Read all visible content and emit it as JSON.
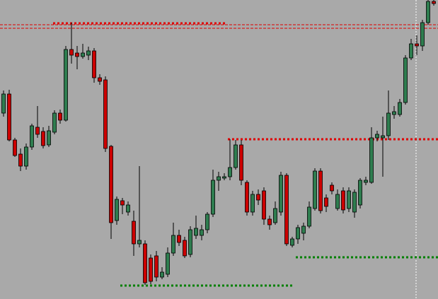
{
  "chart_data": {
    "type": "candlestick",
    "ylim": [
      0,
      423
    ],
    "up_color": "#2e7d4f",
    "down_color": "#cc0000",
    "open": [
      263,
      290,
      225,
      205,
      188,
      215,
      243,
      237,
      218,
      236,
      263,
      253,
      353,
      348,
      343,
      345,
      351,
      313,
      310,
      216,
      111,
      139,
      123,
      110,
      78,
      78,
      58,
      61,
      31,
      35,
      65,
      90,
      83,
      63,
      90,
      90,
      98,
      120,
      168,
      171,
      173,
      186,
      218,
      165,
      123,
      148,
      153,
      113,
      108,
      123,
      175,
      76,
      85,
      93,
      103,
      128,
      181,
      143,
      161,
      128,
      153,
      128,
      123,
      133,
      165,
      165,
      228,
      228,
      231,
      261,
      261,
      278,
      341,
      361,
      358,
      391,
      421
    ],
    "high": [
      295,
      296,
      228,
      213,
      220,
      248,
      273,
      243,
      245,
      267,
      268,
      358,
      391,
      358,
      361,
      357,
      355,
      318,
      315,
      218,
      145,
      143,
      138,
      125,
      188,
      83,
      63,
      68,
      45,
      73,
      108,
      98,
      88,
      103,
      118,
      105,
      123,
      183,
      180,
      178,
      226,
      225,
      225,
      168,
      153,
      155,
      158,
      118,
      138,
      180,
      178,
      88,
      105,
      108,
      138,
      185,
      185,
      148,
      165,
      155,
      158,
      158,
      155,
      171,
      173,
      243,
      238,
      258,
      295,
      273,
      283,
      345,
      368,
      373,
      395,
      423,
      423
    ],
    "low": [
      258,
      223,
      201,
      181,
      183,
      211,
      228,
      213,
      215,
      233,
      248,
      251,
      333,
      325,
      340,
      338,
      306,
      303,
      208,
      85,
      105,
      120,
      118,
      61,
      73,
      20,
      21,
      25,
      28,
      31,
      61,
      75,
      58,
      59,
      85,
      83,
      93,
      116,
      153,
      168,
      168,
      183,
      161,
      118,
      118,
      133,
      105,
      98,
      105,
      118,
      75,
      73,
      78,
      83,
      100,
      125,
      121,
      123,
      148,
      125,
      121,
      123,
      115,
      128,
      161,
      163,
      223,
      173,
      225,
      255,
      258,
      275,
      338,
      345,
      351,
      388,
      415
    ],
    "close": [
      290,
      225,
      203,
      188,
      215,
      245,
      233,
      217,
      238,
      263,
      253,
      353,
      345,
      343,
      348,
      351,
      313,
      308,
      213,
      108,
      141,
      133,
      133,
      78,
      83,
      23,
      25,
      31,
      38,
      65,
      90,
      80,
      61,
      98,
      100,
      98,
      120,
      168,
      173,
      173,
      186,
      218,
      168,
      123,
      148,
      140,
      113,
      105,
      128,
      175,
      78,
      85,
      101,
      103,
      130,
      181,
      125,
      131,
      153,
      148,
      126,
      153,
      151,
      168,
      168,
      228,
      233,
      231,
      263,
      265,
      278,
      341,
      361,
      358,
      391,
      421,
      418
    ],
    "levels": [
      {
        "value": 390,
        "color": "#e00000"
      },
      {
        "value": 226,
        "color": "#e00000"
      },
      {
        "value": 19,
        "color": "#008000"
      },
      {
        "value": 59,
        "color": "#008000"
      },
      {
        "value": 388,
        "color": "#e00000"
      },
      {
        "value": 383,
        "color": "#e00000"
      }
    ]
  }
}
